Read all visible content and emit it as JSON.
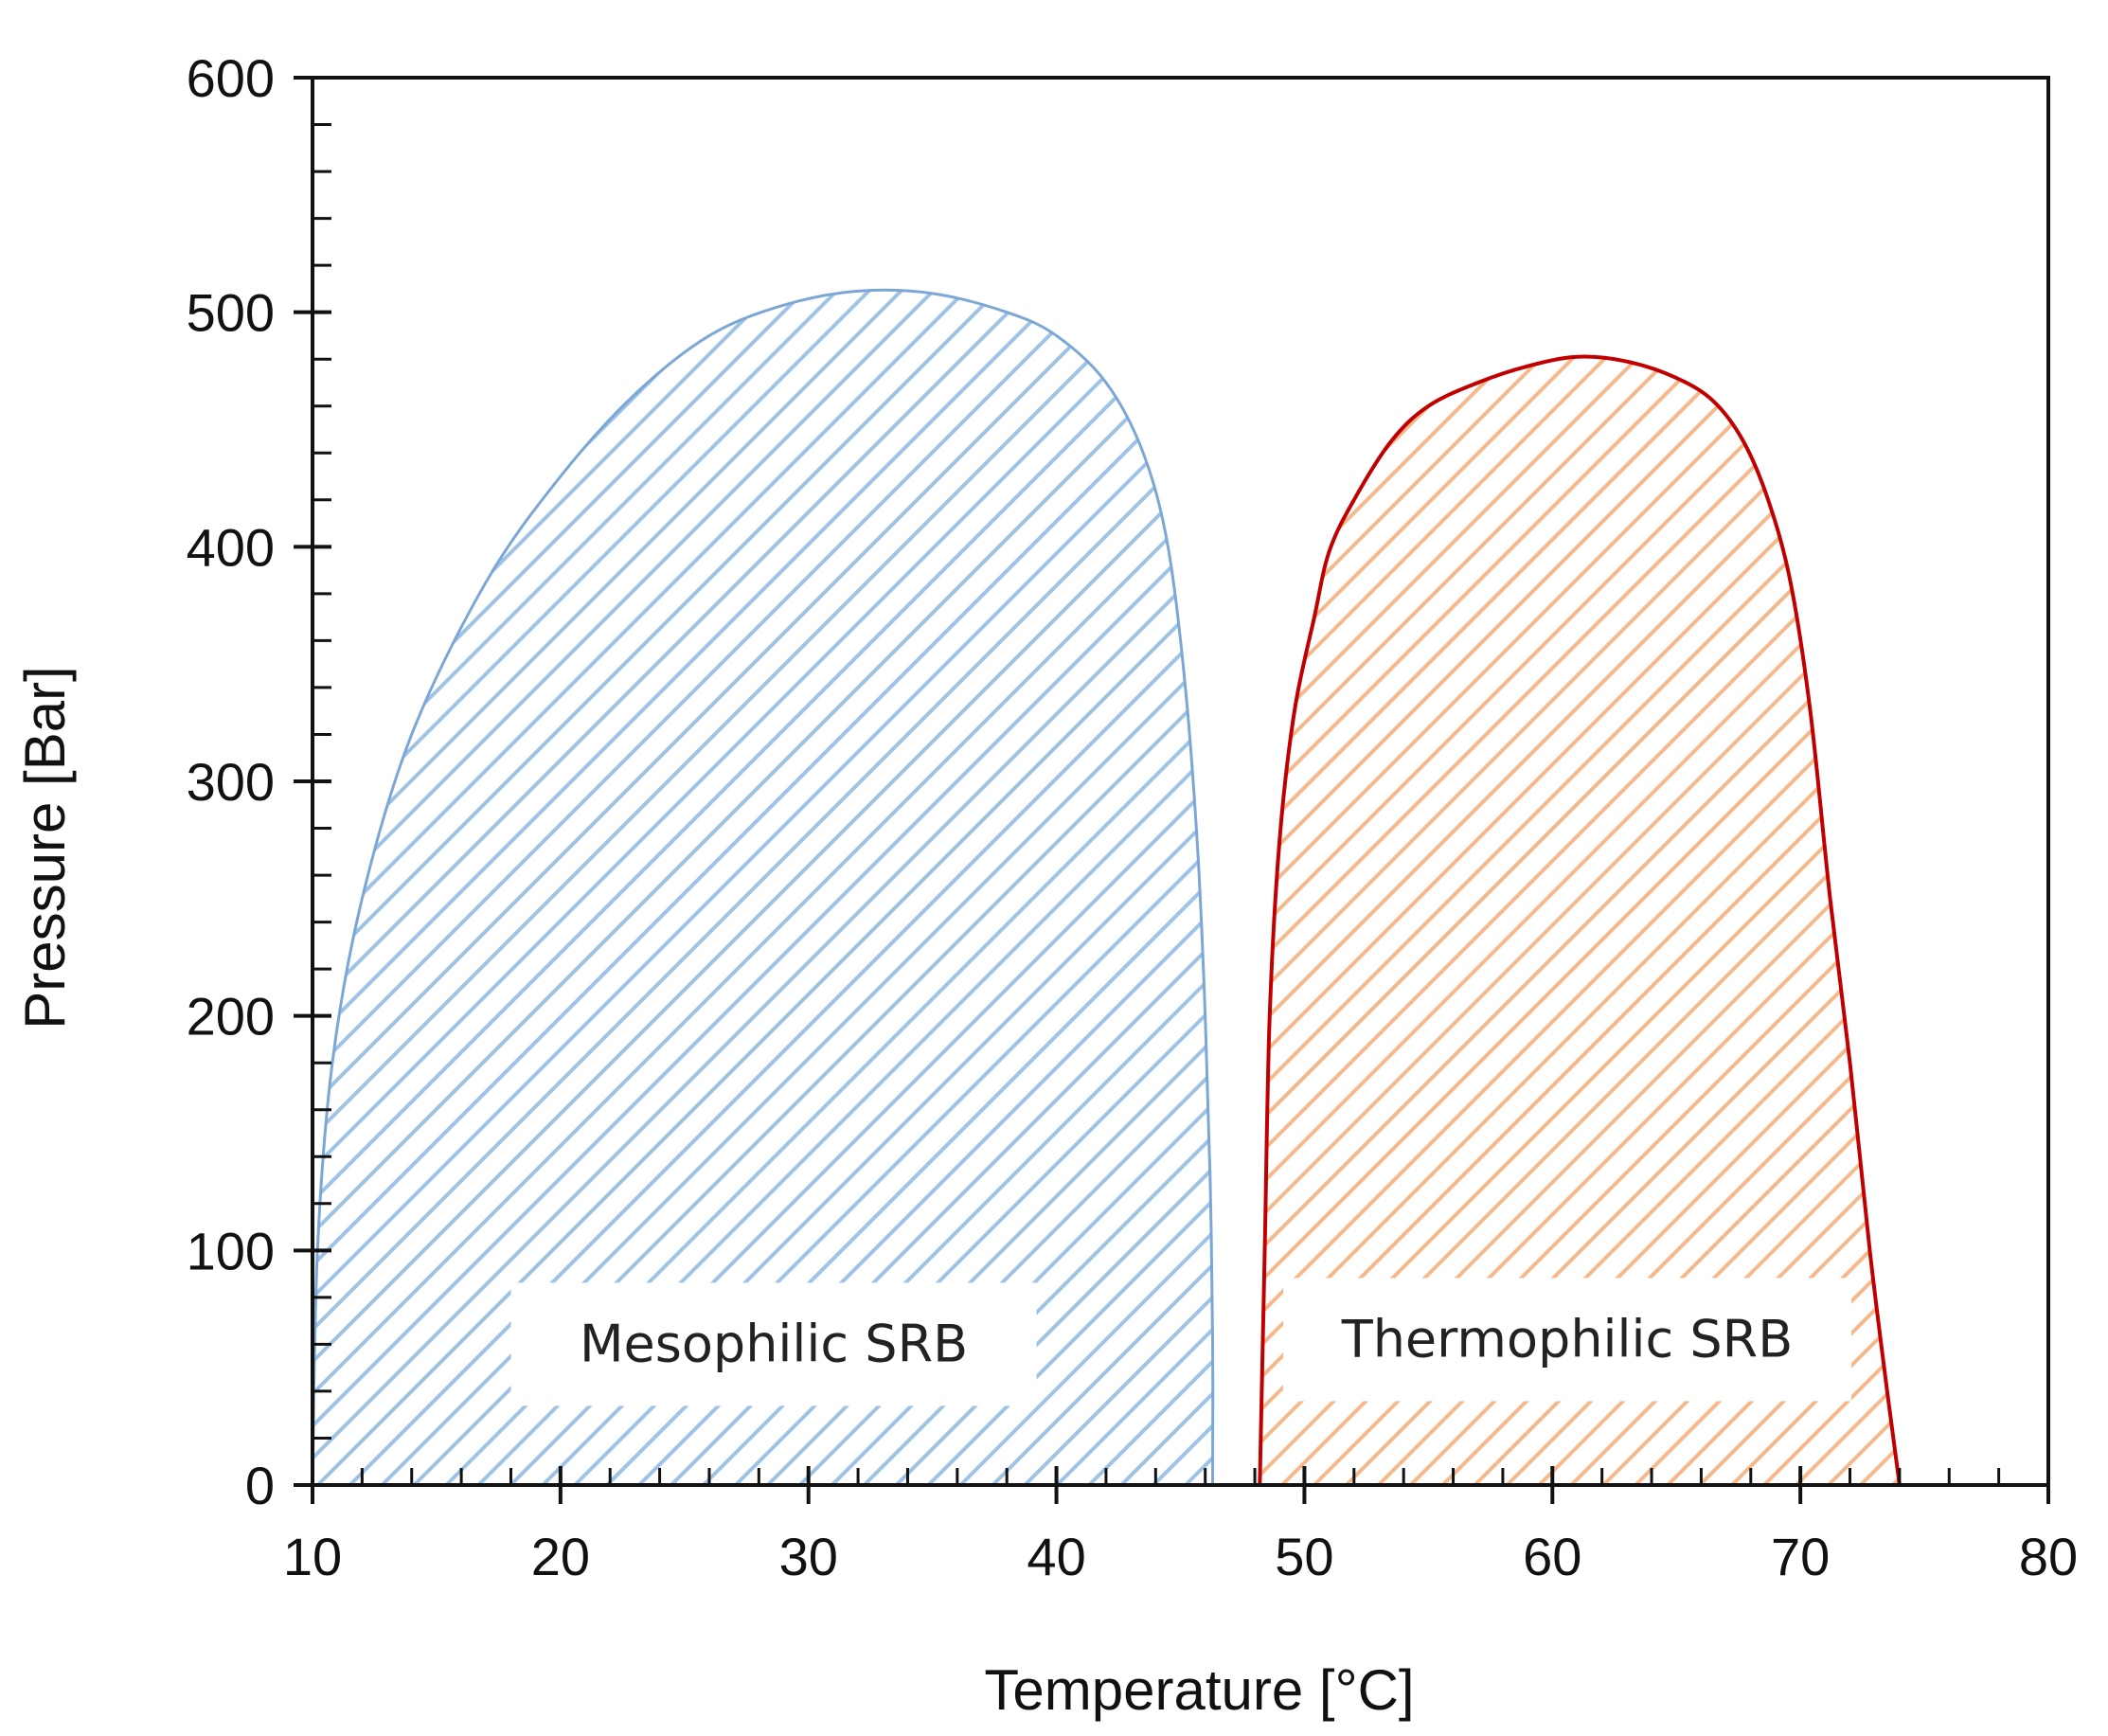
{
  "chart_data": {
    "type": "area",
    "title": "",
    "xlabel": "Temperature  [°C]",
    "ylabel": "Pressure [Bar]",
    "xlim": [
      10,
      80
    ],
    "ylim": [
      0,
      600
    ],
    "x_ticks": [
      10,
      20,
      30,
      40,
      50,
      60,
      70,
      80
    ],
    "y_ticks": [
      0,
      100,
      200,
      300,
      400,
      500,
      600
    ],
    "x_minor_step": 2,
    "y_minor_step": 20,
    "grid": false,
    "legend": "none",
    "series": [
      {
        "name": "Mesophilic SRB",
        "label": "Mesophilic SRB",
        "stroke": "#7ba7d6",
        "hatch": "#9ec3e6",
        "fill_style": "diagonal-hatch",
        "label_anchor": {
          "x": 28.6,
          "y": 60
        },
        "points": [
          [
            10,
            0
          ],
          [
            10.2,
            100
          ],
          [
            10.8,
            180
          ],
          [
            12,
            250
          ],
          [
            14,
            320
          ],
          [
            17,
            385
          ],
          [
            20,
            430
          ],
          [
            23,
            465
          ],
          [
            26,
            490
          ],
          [
            29,
            503
          ],
          [
            32,
            509
          ],
          [
            35,
            508
          ],
          [
            38,
            500
          ],
          [
            40,
            490
          ],
          [
            42,
            470
          ],
          [
            43.5,
            440
          ],
          [
            44.5,
            400
          ],
          [
            45.2,
            340
          ],
          [
            45.7,
            270
          ],
          [
            46,
            200
          ],
          [
            46.2,
            130
          ],
          [
            46.3,
            60
          ],
          [
            46.3,
            0
          ]
        ]
      },
      {
        "name": "Thermophilic SRB",
        "label": "Thermophilic SRB",
        "stroke": "#c00000",
        "hatch": "#f5b98c",
        "fill_style": "diagonal-hatch",
        "label_anchor": {
          "x": 60.6,
          "y": 62
        },
        "points": [
          [
            48.2,
            0
          ],
          [
            48.4,
            100
          ],
          [
            48.6,
            200
          ],
          [
            49,
            275
          ],
          [
            49.6,
            330
          ],
          [
            50.4,
            370
          ],
          [
            51,
            398
          ],
          [
            52,
            420
          ],
          [
            53.5,
            445
          ],
          [
            55,
            460
          ],
          [
            57,
            470
          ],
          [
            59,
            477
          ],
          [
            61,
            481
          ],
          [
            63,
            479
          ],
          [
            65,
            472
          ],
          [
            66.5,
            462
          ],
          [
            67.7,
            445
          ],
          [
            68.7,
            420
          ],
          [
            69.6,
            385
          ],
          [
            70.4,
            330
          ],
          [
            71.2,
            250
          ],
          [
            72,
            180
          ],
          [
            72.8,
            100
          ],
          [
            73.5,
            40
          ],
          [
            74,
            0
          ]
        ]
      }
    ]
  }
}
